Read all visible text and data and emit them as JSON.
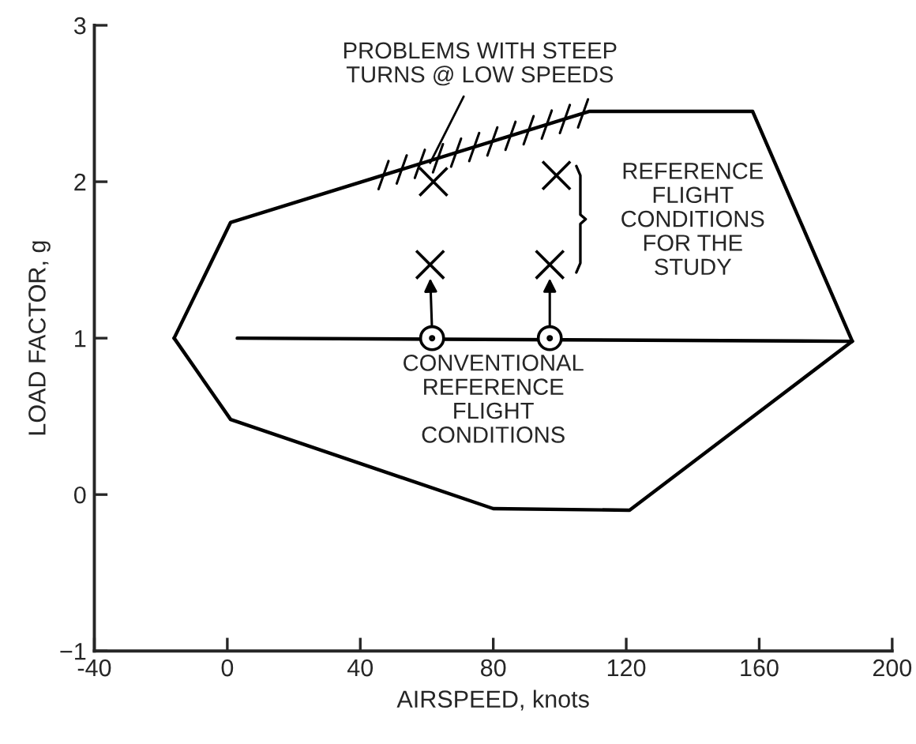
{
  "chart_data": {
    "type": "line",
    "xlabel": "AIRSPEED, knots",
    "ylabel": "LOAD FACTOR, g",
    "xlim": [
      -40,
      200
    ],
    "ylim": [
      -1,
      3
    ],
    "xticks": [
      -40,
      0,
      40,
      80,
      120,
      160,
      200
    ],
    "yticks": [
      -1,
      0,
      1,
      2,
      3
    ],
    "grid": false,
    "legend": false,
    "series": [
      {
        "color": "#000000",
        "x": [
          -16,
          1,
          109,
          158,
          188
        ],
        "values": [
          1.0,
          1.74,
          2.45,
          2.45,
          0.98
        ],
        "marker": "none",
        "line_style": "solid"
      },
      {
        "color": "#000000",
        "x": [
          -16,
          1,
          80,
          121,
          188
        ],
        "values": [
          1.0,
          0.48,
          -0.09,
          -0.1,
          0.98
        ],
        "marker": "none",
        "line_style": "solid"
      },
      {
        "color": "#000000",
        "x": [
          3,
          188
        ],
        "values": [
          1.0,
          0.98
        ],
        "marker": "none",
        "line_style": "solid"
      },
      {
        "type": "scatter",
        "color": "#000000",
        "x": [
          61.6,
          97
        ],
        "values": [
          1.0,
          1.0
        ],
        "marker": "circle"
      },
      {
        "type": "scatter",
        "color": "#000000",
        "x": [
          61,
          97,
          62,
          99
        ],
        "values": [
          1.47,
          1.47,
          2.0,
          2.04
        ],
        "marker": "cross"
      }
    ],
    "annotations": [
      {
        "text": "PROBLEMS WITH STEEP\nTURNS @ LOW SPEEDS",
        "x": 61,
        "y": 2.12
      },
      "REFERENCE\nFLIGHT\nCONDITIONS\nFOR THE\nSTUDY",
      "CONVENTIONAL\nREFERENCE\nFLIGHT\nCONDITIONS"
    ]
  }
}
